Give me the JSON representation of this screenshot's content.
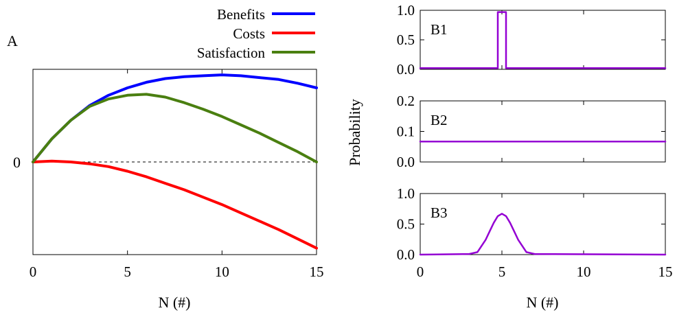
{
  "chart_data": [
    {
      "panel_label": "A",
      "type": "line",
      "xlabel": "N (#)",
      "xlim": [
        0,
        15
      ],
      "xticks": [
        "0",
        "5",
        "10",
        "15"
      ],
      "yticks": [
        "0"
      ],
      "ylim": [
        -1.0,
        1.0
      ],
      "zero_line": "dashed",
      "legend_position": "top-right, outside",
      "x": [
        0,
        1,
        2,
        3,
        4,
        5,
        6,
        7,
        8,
        9,
        10,
        11,
        12,
        13,
        14,
        15
      ],
      "series": [
        {
          "name": "Benefits",
          "color": "#0000ff",
          "values": [
            0,
            0.25,
            0.45,
            0.61,
            0.72,
            0.8,
            0.86,
            0.9,
            0.92,
            0.93,
            0.94,
            0.93,
            0.91,
            0.89,
            0.85,
            0.8
          ]
        },
        {
          "name": "Costs",
          "color": "#ff0000",
          "values": [
            0,
            0.01,
            0.0,
            -0.02,
            -0.05,
            -0.1,
            -0.16,
            -0.23,
            -0.3,
            -0.38,
            -0.46,
            -0.55,
            -0.64,
            -0.73,
            -0.83,
            -0.93
          ]
        },
        {
          "name": "Satisfaction",
          "color": "#4a7f10",
          "values": [
            0,
            0.25,
            0.45,
            0.6,
            0.68,
            0.72,
            0.73,
            0.7,
            0.64,
            0.57,
            0.49,
            0.4,
            0.31,
            0.21,
            0.11,
            0.0
          ]
        }
      ]
    },
    {
      "panel_label": "B1",
      "type": "line",
      "ylabel": "Probability",
      "xlim": [
        0,
        15
      ],
      "ylim": [
        0,
        1.0
      ],
      "yticks": [
        "0.0",
        "0.5",
        "1.0"
      ],
      "color": "#9400d3",
      "x": [
        0,
        4.75,
        4.75,
        5.25,
        5.25,
        15
      ],
      "values": [
        0.02,
        0.02,
        0.97,
        0.97,
        0.02,
        0.02
      ]
    },
    {
      "panel_label": "B2",
      "type": "line",
      "xlim": [
        0,
        15
      ],
      "ylim": [
        0,
        0.2
      ],
      "yticks": [
        "0.0",
        "0.1",
        "0.2"
      ],
      "color": "#9400d3",
      "x": [
        0,
        15
      ],
      "values": [
        0.0667,
        0.0667
      ]
    },
    {
      "panel_label": "B3",
      "type": "line",
      "xlabel": "N (#)",
      "xlim": [
        0,
        15
      ],
      "ylim": [
        0,
        1.0
      ],
      "xticks": [
        "0",
        "5",
        "10",
        "15"
      ],
      "yticks": [
        "0.0",
        "0.5",
        "1.0"
      ],
      "color": "#9400d3",
      "x": [
        0,
        3,
        3.5,
        4,
        4.25,
        4.5,
        4.75,
        5,
        5.25,
        5.5,
        5.75,
        6,
        6.5,
        7,
        15
      ],
      "values": [
        0.0,
        0.01,
        0.04,
        0.24,
        0.38,
        0.52,
        0.63,
        0.67,
        0.63,
        0.52,
        0.38,
        0.24,
        0.04,
        0.01,
        0.0
      ]
    }
  ]
}
